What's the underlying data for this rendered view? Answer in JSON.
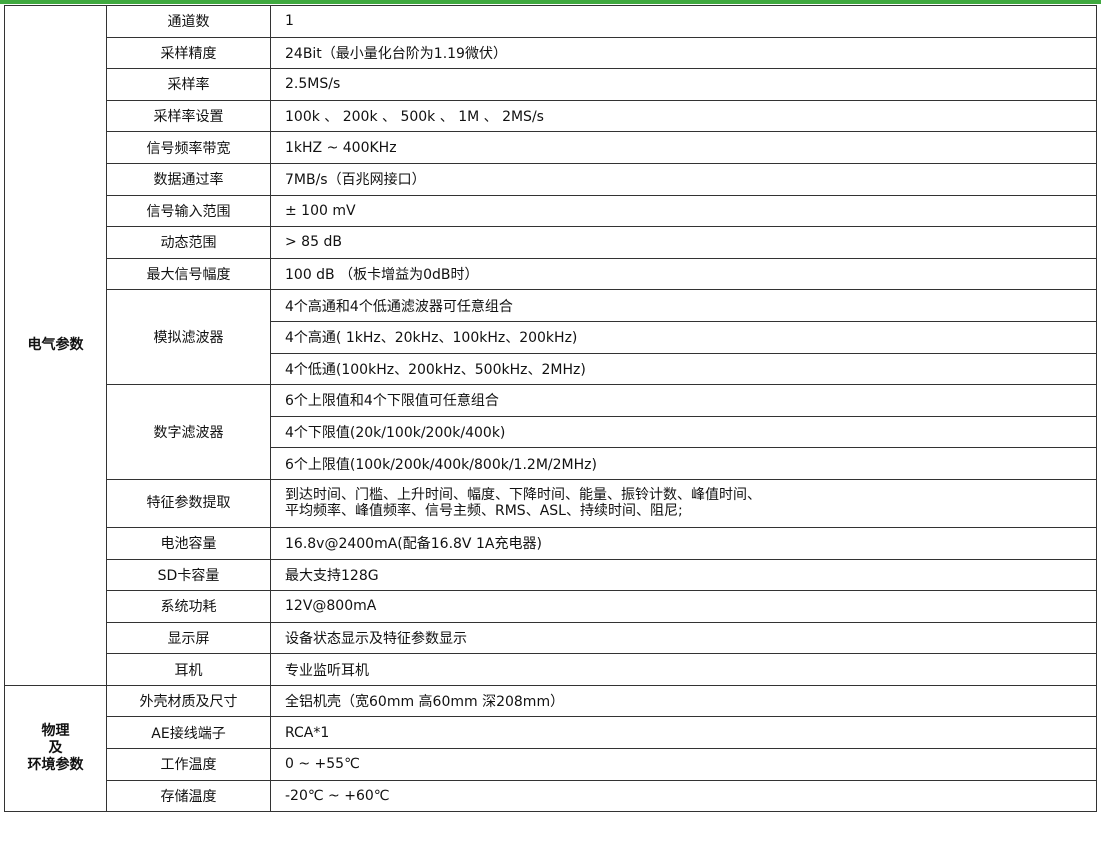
{
  "groups": [
    {
      "name": "电气参数",
      "rows": [
        {
          "key": "通道数",
          "values": [
            "1"
          ]
        },
        {
          "key": "采样精度",
          "values": [
            "24Bit（最小量化台阶为1.19微伏）"
          ]
        },
        {
          "key": "采样率",
          "values": [
            "2.5MS/s"
          ]
        },
        {
          "key": "采样率设置",
          "values": [
            "100k 、 200k 、 500k 、 1M 、 2MS/s"
          ]
        },
        {
          "key": "信号频率带宽",
          "values": [
            "1kHZ ~ 400KHz"
          ]
        },
        {
          "key": "数据通过率",
          "values": [
            "7MB/s（百兆网接口）"
          ]
        },
        {
          "key": "信号输入范围",
          "values": [
            "± 100 mV"
          ]
        },
        {
          "key": "动态范围",
          "values": [
            "> 85 dB"
          ]
        },
        {
          "key": "最大信号幅度",
          "values": [
            "100 dB （板卡增益为0dB时）"
          ]
        },
        {
          "key": "模拟滤波器",
          "values": [
            "4个高通和4个低通滤波器可任意组合",
            "4个高通( 1kHz、20kHz、100kHz、200kHz)",
            "4个低通(100kHz、200kHz、500kHz、2MHz)"
          ]
        },
        {
          "key": "数字滤波器",
          "values": [
            "6个上限值和4个下限值可任意组合",
            "4个下限值(20k/100k/200k/400k)",
            "6个上限值(100k/200k/400k/800k/1.2M/2MHz)"
          ]
        },
        {
          "key": "特征参数提取",
          "values": [
            "到达时间、门槛、上升时间、幅度、下降时间、能量、振铃计数、峰值时间、",
            "平均频率、峰值频率、信号主频、RMS、ASL、持续时间、阻尼;"
          ],
          "multiline": true
        },
        {
          "key": "电池容量",
          "values": [
            "16.8v@2400mA(配备16.8V 1A充电器)"
          ]
        },
        {
          "key": "SD卡容量",
          "values": [
            "最大支持128G"
          ]
        },
        {
          "key": "系统功耗",
          "values": [
            "12V@800mA"
          ]
        },
        {
          "key": "显示屏",
          "values": [
            "设备状态显示及特征参数显示"
          ]
        },
        {
          "key": "耳机",
          "values": [
            "专业监听耳机"
          ]
        }
      ]
    },
    {
      "name": "物理\n及\n环境参数",
      "rows": [
        {
          "key": "外壳材质及尺寸",
          "values": [
            "全铝机壳（宽60mm 高60mm 深208mm）"
          ]
        },
        {
          "key": "AE接线端子",
          "values": [
            "RCA*1"
          ]
        },
        {
          "key": "工作温度",
          "values": [
            "0 ~ +55℃"
          ]
        },
        {
          "key": "存储温度",
          "values": [
            "-20℃ ~ +60℃"
          ]
        }
      ]
    }
  ],
  "colors": {
    "top_bar": "#3fa93f",
    "border": "#333333"
  }
}
